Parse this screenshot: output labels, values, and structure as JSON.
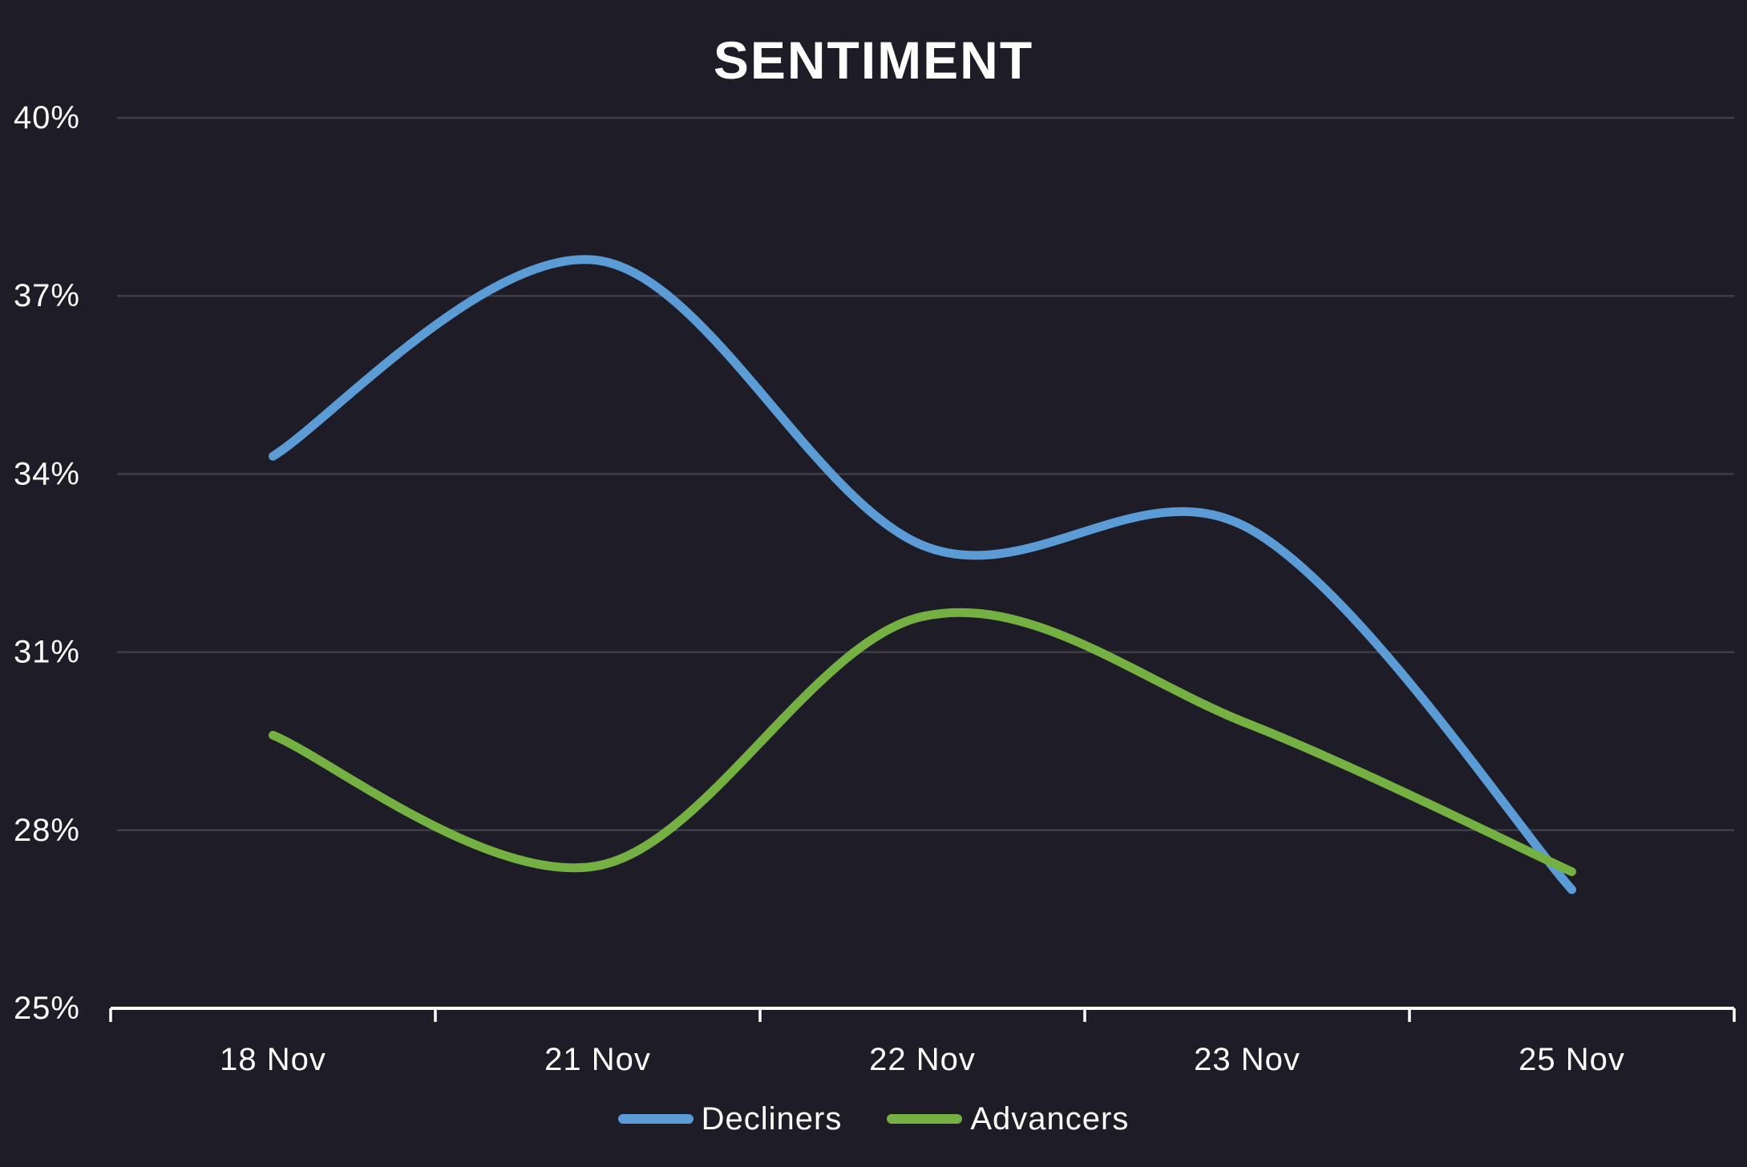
{
  "title": "SENTIMENT",
  "colors": {
    "background": "#1E1C26",
    "text": "#FFFFFF",
    "gridline": "#3F3D45",
    "axis_line": "#FFFFFF",
    "decliners": "#5C9CD6",
    "advancers": "#75B043"
  },
  "y_axis": {
    "tick_labels": [
      "40%",
      "37%",
      "34%",
      "31%",
      "28%",
      "25%"
    ]
  },
  "x_axis": {
    "tick_labels": [
      "18 Nov",
      "21 Nov",
      "22 Nov",
      "23 Nov",
      "25 Nov"
    ]
  },
  "legend": {
    "items": [
      {
        "label": "Decliners",
        "color": "#5C9CD6"
      },
      {
        "label": "Advancers",
        "color": "#75B043"
      }
    ]
  },
  "chart_data": {
    "type": "line",
    "title": "SENTIMENT",
    "x": [
      "18 Nov",
      "21 Nov",
      "22 Nov",
      "23 Nov",
      "25 Nov"
    ],
    "series": [
      {
        "name": "Decliners",
        "color": "#5C9CD6",
        "values": [
          34.3,
          37.6,
          32.8,
          33.1,
          27.0
        ]
      },
      {
        "name": "Advancers",
        "color": "#75B043",
        "values": [
          29.6,
          27.4,
          31.6,
          29.8,
          27.3
        ]
      }
    ],
    "xlabel": "",
    "ylabel": "",
    "ylim": [
      25,
      40
    ],
    "y_ticks": [
      25,
      28,
      31,
      34,
      37,
      40
    ],
    "y_tick_format": "percent",
    "grid": "horizontal",
    "curve": "smooth",
    "legend_position": "bottom"
  }
}
